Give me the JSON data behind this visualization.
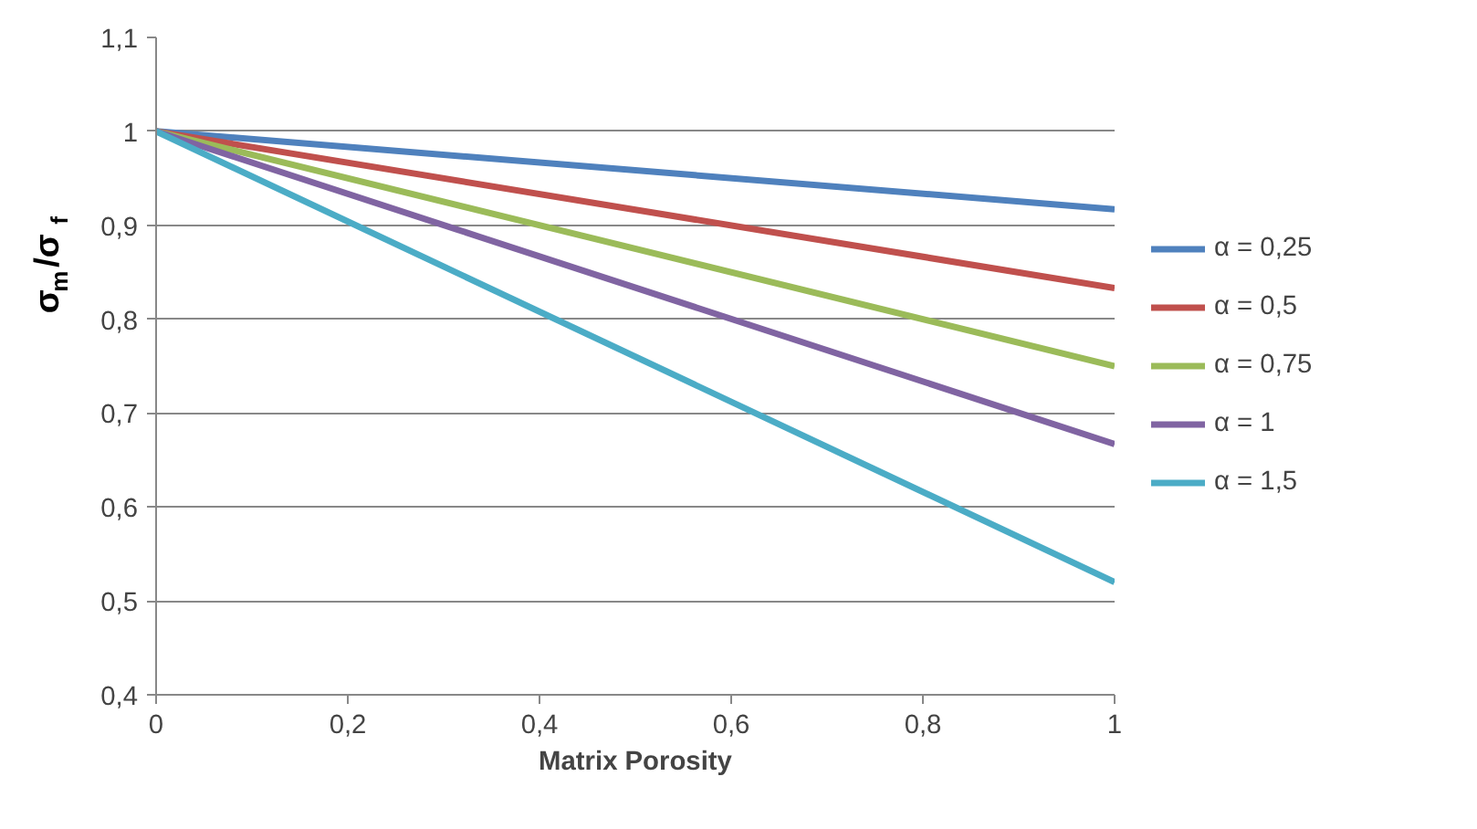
{
  "chart_data": {
    "type": "line",
    "xlabel": "Matrix Porosity",
    "ylabel": "σ$_{m}$/σ$_{f}$",
    "x": [
      0,
      1
    ],
    "series": [
      {
        "name": "α = 0,25",
        "color": "#4f81bd",
        "values": [
          1,
          0.917
        ]
      },
      {
        "name": "α = 0,5",
        "color": "#c0504d",
        "values": [
          1,
          0.833
        ]
      },
      {
        "name": "α = 0,75",
        "color": "#9bbb59",
        "values": [
          1,
          0.75
        ]
      },
      {
        "name": "α = 1",
        "color": "#8064a2",
        "values": [
          1,
          0.667
        ]
      },
      {
        "name": "α = 1,5",
        "color": "#4bacc6",
        "values": [
          1,
          0.52
        ]
      }
    ],
    "xlim": [
      0,
      1
    ],
    "xticks": [
      {
        "value": 0,
        "label": "0"
      },
      {
        "value": 0.2,
        "label": "0,2"
      },
      {
        "value": 0.4,
        "label": "0,4"
      },
      {
        "value": 0.6,
        "label": "0,6"
      },
      {
        "value": 0.8,
        "label": "0,8"
      },
      {
        "value": 1,
        "label": "1"
      }
    ],
    "ylim": [
      0.4,
      1.1
    ],
    "yticks": [
      {
        "value": 0.4,
        "label": "0,4"
      },
      {
        "value": 0.5,
        "label": "0,5"
      },
      {
        "value": 0.6,
        "label": "0,6"
      },
      {
        "value": 0.7,
        "label": "0,7"
      },
      {
        "value": 0.8,
        "label": "0,8"
      },
      {
        "value": 0.9,
        "label": "0,9"
      },
      {
        "value": 1,
        "label": "1"
      },
      {
        "value": 1.1,
        "label": "1,1"
      }
    ],
    "grid": "y",
    "legend": "right",
    "marker": "none",
    "line_style": "solid"
  }
}
